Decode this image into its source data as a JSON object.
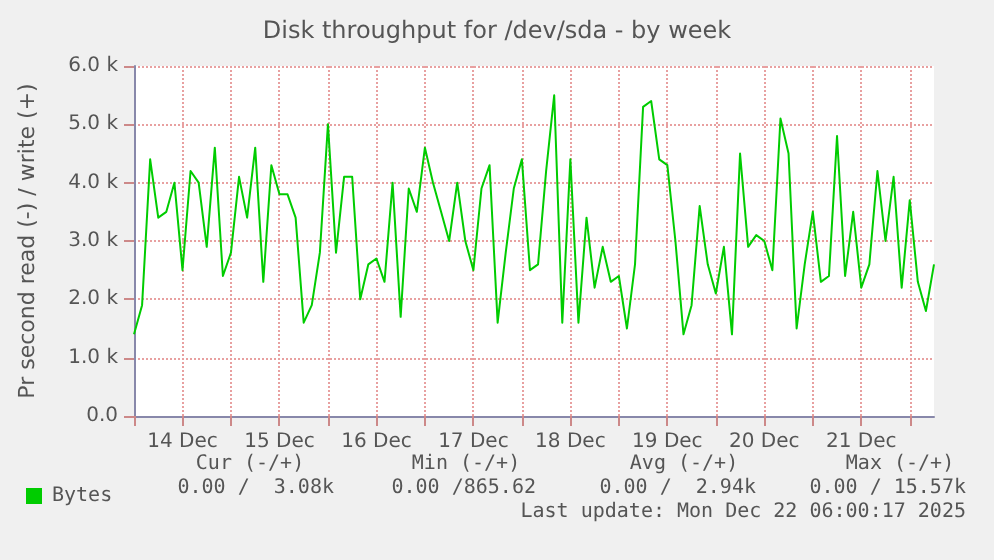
{
  "chart_data": {
    "type": "line",
    "title": "Disk throughput for /dev/sda - by week",
    "ylabel": "Pr second read (-) / write (+)",
    "x": [
      "2025-12-14T00:00",
      "2025-12-14T02:00",
      "2025-12-14T04:00",
      "2025-12-14T06:00",
      "2025-12-14T08:00",
      "2025-12-14T10:00",
      "2025-12-14T12:00",
      "2025-12-14T14:00",
      "2025-12-14T16:00",
      "2025-12-14T18:00",
      "2025-12-14T20:00",
      "2025-12-14T22:00",
      "2025-12-15T00:00",
      "2025-12-15T02:00",
      "2025-12-15T04:00",
      "2025-12-15T06:00",
      "2025-12-15T08:00",
      "2025-12-15T10:00",
      "2025-12-15T12:00",
      "2025-12-15T14:00",
      "2025-12-15T16:00",
      "2025-12-15T18:00",
      "2025-12-15T20:00",
      "2025-12-15T22:00",
      "2025-12-16T00:00",
      "2025-12-16T02:00",
      "2025-12-16T04:00",
      "2025-12-16T06:00",
      "2025-12-16T08:00",
      "2025-12-16T10:00",
      "2025-12-16T12:00",
      "2025-12-16T14:00",
      "2025-12-16T16:00",
      "2025-12-16T18:00",
      "2025-12-16T20:00",
      "2025-12-16T22:00",
      "2025-12-17T00:00",
      "2025-12-17T02:00",
      "2025-12-17T04:00",
      "2025-12-17T06:00",
      "2025-12-17T08:00",
      "2025-12-17T10:00",
      "2025-12-17T12:00",
      "2025-12-17T14:00",
      "2025-12-17T16:00",
      "2025-12-17T18:00",
      "2025-12-17T20:00",
      "2025-12-17T22:00",
      "2025-12-18T00:00",
      "2025-12-18T02:00",
      "2025-12-18T04:00",
      "2025-12-18T06:00",
      "2025-12-18T08:00",
      "2025-12-18T10:00",
      "2025-12-18T12:00",
      "2025-12-18T14:00",
      "2025-12-18T16:00",
      "2025-12-18T18:00",
      "2025-12-18T20:00",
      "2025-12-18T22:00",
      "2025-12-19T00:00",
      "2025-12-19T02:00",
      "2025-12-19T04:00",
      "2025-12-19T06:00",
      "2025-12-19T08:00",
      "2025-12-19T10:00",
      "2025-12-19T12:00",
      "2025-12-19T14:00",
      "2025-12-19T16:00",
      "2025-12-19T18:00",
      "2025-12-19T20:00",
      "2025-12-19T22:00",
      "2025-12-20T00:00",
      "2025-12-20T02:00",
      "2025-12-20T04:00",
      "2025-12-20T06:00",
      "2025-12-20T08:00",
      "2025-12-20T10:00",
      "2025-12-20T12:00",
      "2025-12-20T14:00",
      "2025-12-20T16:00",
      "2025-12-20T18:00",
      "2025-12-20T20:00",
      "2025-12-20T22:00",
      "2025-12-21T00:00",
      "2025-12-21T02:00",
      "2025-12-21T04:00",
      "2025-12-21T06:00",
      "2025-12-21T08:00",
      "2025-12-21T10:00",
      "2025-12-21T12:00",
      "2025-12-21T14:00",
      "2025-12-21T16:00",
      "2025-12-21T18:00",
      "2025-12-21T20:00",
      "2025-12-21T22:00",
      "2025-12-22T00:00",
      "2025-12-22T02:00",
      "2025-12-22T04:00",
      "2025-12-22T06:00"
    ],
    "series": [
      {
        "name": "Bytes",
        "color": "#00cc00",
        "values": [
          1400,
          1900,
          4400,
          3400,
          3500,
          4000,
          2500,
          4200,
          4000,
          2900,
          4600,
          2400,
          2800,
          4100,
          3400,
          4600,
          2300,
          4300,
          3800,
          3800,
          3400,
          1600,
          1900,
          2800,
          5000,
          2800,
          4100,
          4100,
          2000,
          2600,
          2700,
          2300,
          4000,
          1700,
          3900,
          3500,
          4600,
          4000,
          3500,
          3000,
          4000,
          3000,
          2500,
          3900,
          4300,
          1600,
          2800,
          3900,
          4400,
          2500,
          2600,
          4200,
          5500,
          1600,
          4400,
          1600,
          3400,
          2200,
          2900,
          2300,
          2400,
          1500,
          2600,
          5300,
          5400,
          4400,
          4300,
          3000,
          1400,
          1900,
          3600,
          2600,
          2100,
          2900,
          1400,
          4500,
          2900,
          3100,
          3000,
          2500,
          5100,
          4500,
          1500,
          2600,
          3500,
          2300,
          2400,
          4800,
          2400,
          3500,
          2200,
          2600,
          4200,
          3000,
          4100,
          2200,
          3700,
          2300,
          1800,
          2600
        ]
      }
    ],
    "xlim": [
      "2025-12-14T00:00",
      "2025-12-22T06:00"
    ],
    "xticks": [
      {
        "value": "2025-12-14T00:00",
        "label": null
      },
      {
        "value": "2025-12-14T12:00",
        "label": "14 Dec"
      },
      {
        "value": "2025-12-15T00:00",
        "label": null
      },
      {
        "value": "2025-12-15T12:00",
        "label": "15 Dec"
      },
      {
        "value": "2025-12-16T00:00",
        "label": null
      },
      {
        "value": "2025-12-16T12:00",
        "label": "16 Dec"
      },
      {
        "value": "2025-12-17T00:00",
        "label": null
      },
      {
        "value": "2025-12-17T12:00",
        "label": "17 Dec"
      },
      {
        "value": "2025-12-18T00:00",
        "label": null
      },
      {
        "value": "2025-12-18T12:00",
        "label": "18 Dec"
      },
      {
        "value": "2025-12-19T00:00",
        "label": null
      },
      {
        "value": "2025-12-19T12:00",
        "label": "19 Dec"
      },
      {
        "value": "2025-12-20T00:00",
        "label": null
      },
      {
        "value": "2025-12-20T12:00",
        "label": "20 Dec"
      },
      {
        "value": "2025-12-21T00:00",
        "label": null
      },
      {
        "value": "2025-12-21T12:00",
        "label": "21 Dec"
      },
      {
        "value": "2025-12-22T00:00",
        "label": null
      }
    ],
    "ylim": [
      0,
      6000
    ],
    "yticks": [
      {
        "value": 0,
        "label": "0.0"
      },
      {
        "value": 1000,
        "label": "1.0 k"
      },
      {
        "value": 2000,
        "label": "2.0 k"
      },
      {
        "value": 3000,
        "label": "3.0 k"
      },
      {
        "value": 4000,
        "label": "4.0 k"
      },
      {
        "value": 5000,
        "label": "5.0 k"
      },
      {
        "value": 6000,
        "label": "6.0 k"
      }
    ],
    "grid": true,
    "legend": "bottom left",
    "annotations": [
      "Cur (-/+)",
      "Min (-/+)",
      "Avg (-/+)",
      "Max (-/+)",
      "0.00 /  3.08k",
      "0.00 /865.62",
      "0.00 /  2.94k",
      "0.00 / 15.57k",
      "Last update: Mon Dec 22 06:00:17 2025"
    ]
  }
}
